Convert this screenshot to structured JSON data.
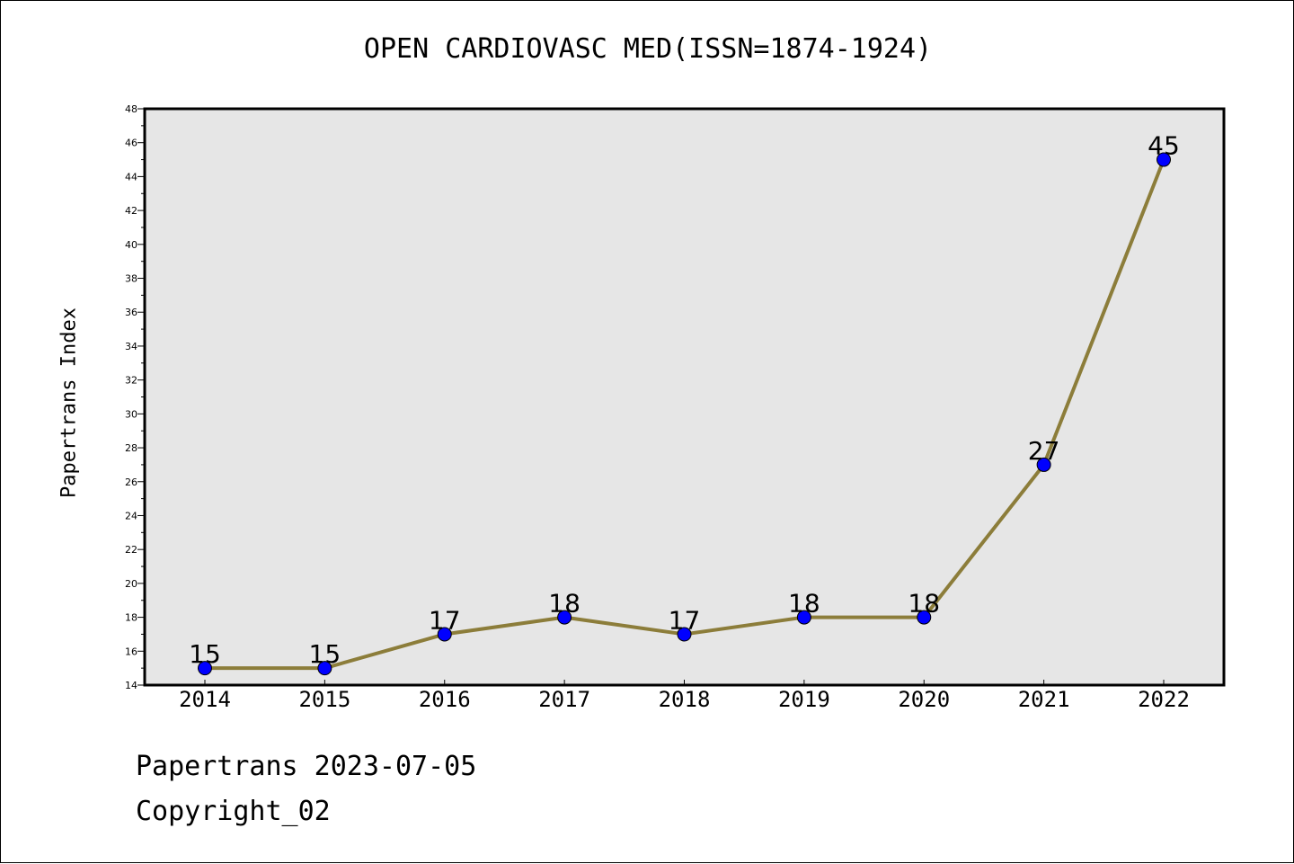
{
  "chart_data": {
    "type": "line",
    "title": "OPEN CARDIOVASC MED(ISSN=1874-1924)",
    "xlabel": "",
    "ylabel": "Papertrans Index",
    "categories": [
      "2014",
      "2015",
      "2016",
      "2017",
      "2018",
      "2019",
      "2020",
      "2021",
      "2022"
    ],
    "series": [
      {
        "values": [
          15,
          15,
          17,
          18,
          17,
          18,
          18,
          27,
          45
        ]
      }
    ],
    "data_labels": [
      "15",
      "15",
      "17",
      "18",
      "17",
      "18",
      "18",
      "27",
      "45"
    ],
    "ylim": [
      14,
      48
    ],
    "yticks": [
      "14",
      "16",
      "18",
      "20",
      "22",
      "24",
      "26",
      "28",
      "30",
      "32",
      "34",
      "36",
      "38",
      "40",
      "42",
      "44",
      "46",
      "48"
    ],
    "grid": false,
    "legend": "none",
    "colors": {
      "line": "#8c7d3a",
      "marker": "#0000ff",
      "plot_bg": "#e6e6e6"
    }
  },
  "footer": {
    "date_line": "Papertrans 2023-07-05",
    "copyright": "Copyright_02"
  }
}
